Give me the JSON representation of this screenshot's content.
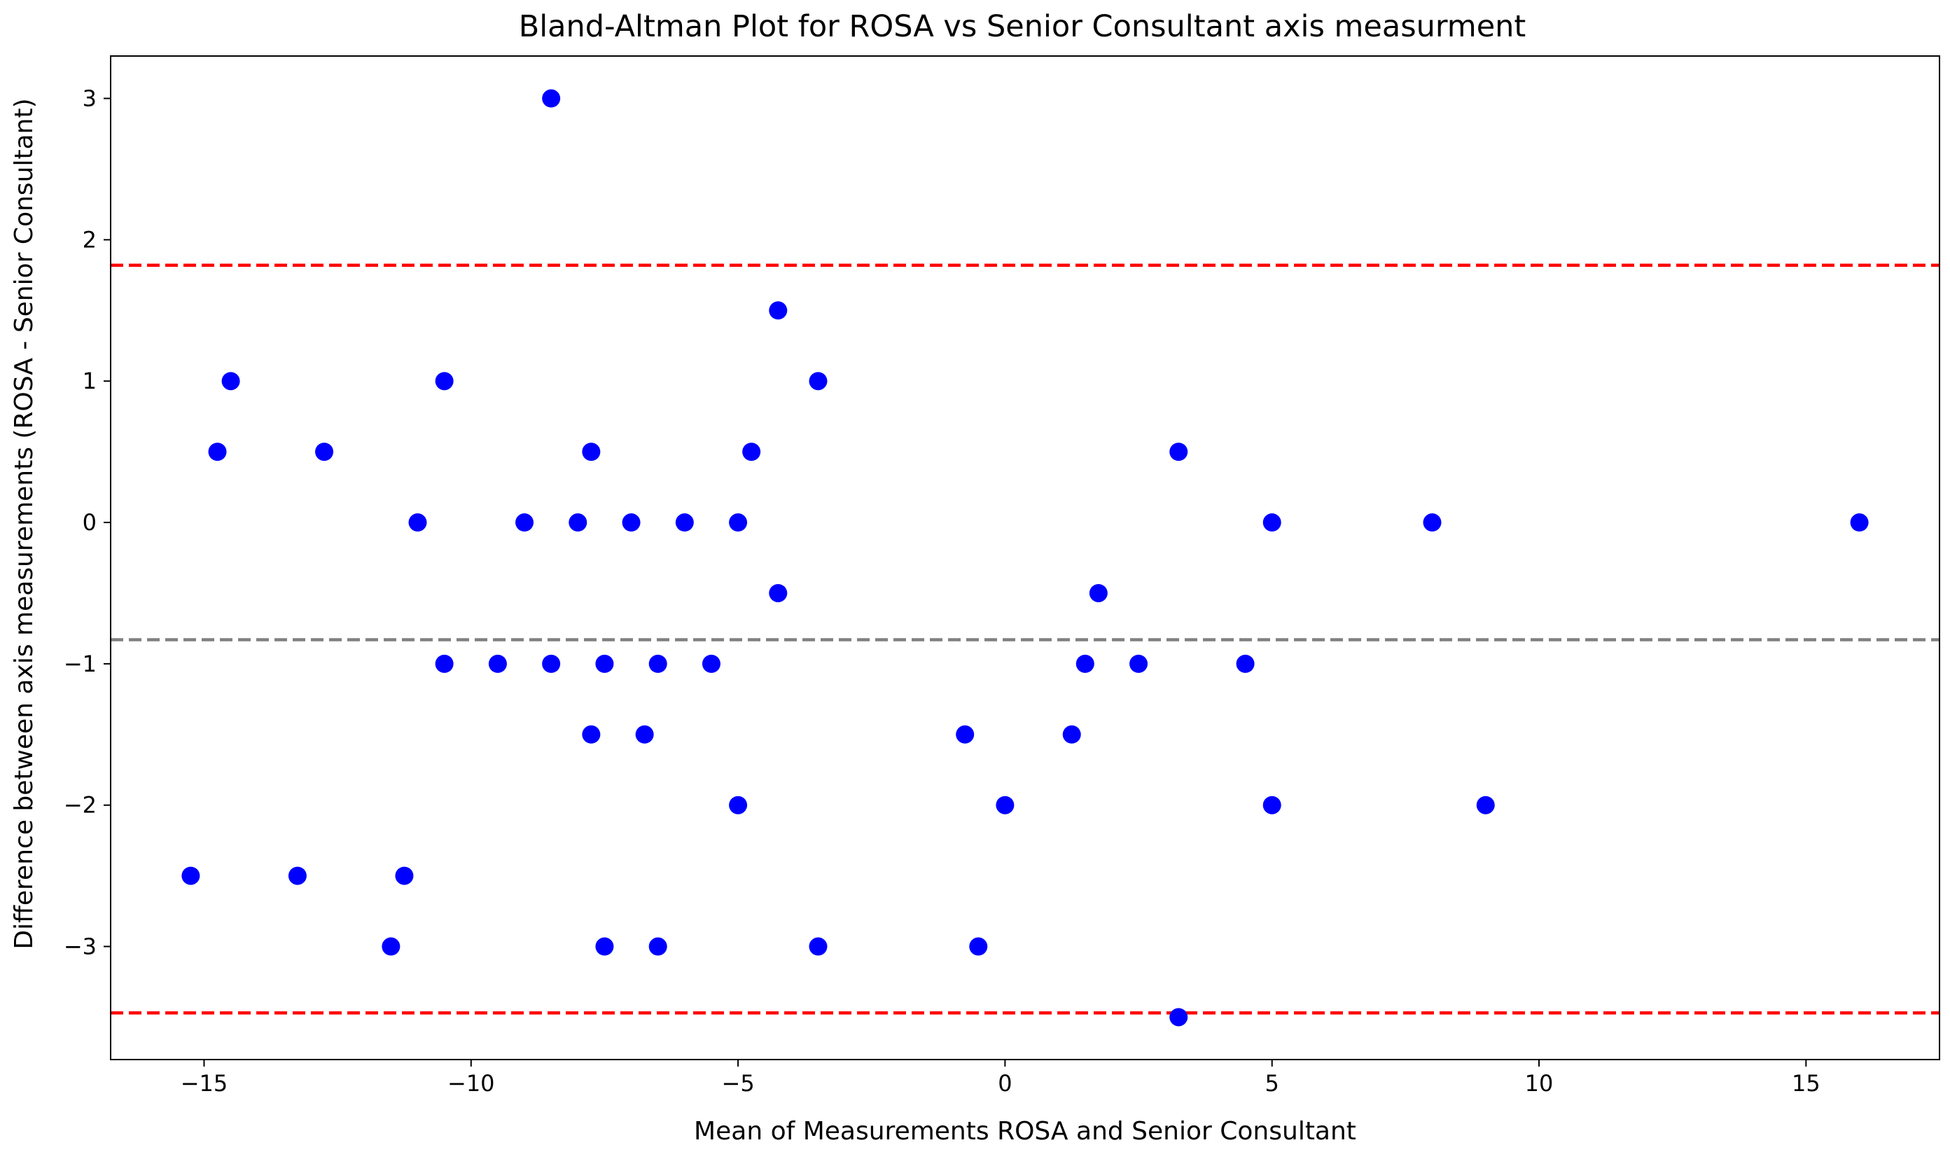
{
  "chart_data": {
    "type": "scatter",
    "title": "Bland-Altman Plot for ROSA vs Senior Consultant axis measurment",
    "xlabel": "Mean of Measurements ROSA and Senior Consultant",
    "ylabel": "Difference between axis measurements (ROSA - Senior Consultant)",
    "xlim": [
      -16.75,
      17.5
    ],
    "ylim": [
      -3.8,
      3.3
    ],
    "xticks": [
      -15,
      -10,
      -5,
      0,
      5,
      10,
      15
    ],
    "xtick_labels": [
      "−15",
      "−10",
      "−5",
      "0",
      "5",
      "10",
      "15"
    ],
    "yticks": [
      -3,
      -2,
      -1,
      0,
      1,
      2,
      3
    ],
    "ytick_labels": [
      "−3",
      "−2",
      "−1",
      "0",
      "1",
      "2",
      "3"
    ],
    "grid": false,
    "point_color": "#0000ff",
    "mean_line": {
      "y": -0.83,
      "color": "#808080",
      "style": "dashed"
    },
    "limits_of_agreement": [
      {
        "y": 1.82,
        "color": "#ff0000",
        "style": "dashed"
      },
      {
        "y": -3.47,
        "color": "#ff0000",
        "style": "dashed"
      }
    ],
    "points": [
      {
        "x": -8.5,
        "y": 3
      },
      {
        "x": -4.25,
        "y": 1.5
      },
      {
        "x": -14.5,
        "y": 1
      },
      {
        "x": -10.5,
        "y": 1
      },
      {
        "x": -3.5,
        "y": 1
      },
      {
        "x": -14.75,
        "y": 0.5
      },
      {
        "x": -12.75,
        "y": 0.5
      },
      {
        "x": -7.75,
        "y": 0.5
      },
      {
        "x": -4.75,
        "y": 0.5
      },
      {
        "x": 3.25,
        "y": 0.5
      },
      {
        "x": -11,
        "y": 0
      },
      {
        "x": -9,
        "y": 0
      },
      {
        "x": -8,
        "y": 0
      },
      {
        "x": -7,
        "y": 0
      },
      {
        "x": -6,
        "y": 0
      },
      {
        "x": -5,
        "y": 0
      },
      {
        "x": 5,
        "y": 0
      },
      {
        "x": 8,
        "y": 0
      },
      {
        "x": 16,
        "y": 0
      },
      {
        "x": -4.25,
        "y": -0.5
      },
      {
        "x": 1.75,
        "y": -0.5
      },
      {
        "x": -10.5,
        "y": -1
      },
      {
        "x": -9.5,
        "y": -1
      },
      {
        "x": -8.5,
        "y": -1
      },
      {
        "x": -7.5,
        "y": -1
      },
      {
        "x": -6.5,
        "y": -1
      },
      {
        "x": -5.5,
        "y": -1
      },
      {
        "x": 1.5,
        "y": -1
      },
      {
        "x": 2.5,
        "y": -1
      },
      {
        "x": 4.5,
        "y": -1
      },
      {
        "x": -7.75,
        "y": -1.5
      },
      {
        "x": -6.75,
        "y": -1.5
      },
      {
        "x": -0.75,
        "y": -1.5
      },
      {
        "x": 1.25,
        "y": -1.5
      },
      {
        "x": -5,
        "y": -2
      },
      {
        "x": 0,
        "y": -2
      },
      {
        "x": 5,
        "y": -2
      },
      {
        "x": 9,
        "y": -2
      },
      {
        "x": -15.25,
        "y": -2.5
      },
      {
        "x": -13.25,
        "y": -2.5
      },
      {
        "x": -11.25,
        "y": -2.5
      },
      {
        "x": -11.5,
        "y": -3
      },
      {
        "x": -7.5,
        "y": -3
      },
      {
        "x": -6.5,
        "y": -3
      },
      {
        "x": -3.5,
        "y": -3
      },
      {
        "x": -0.5,
        "y": -3
      },
      {
        "x": 3.25,
        "y": -3.5
      }
    ]
  }
}
